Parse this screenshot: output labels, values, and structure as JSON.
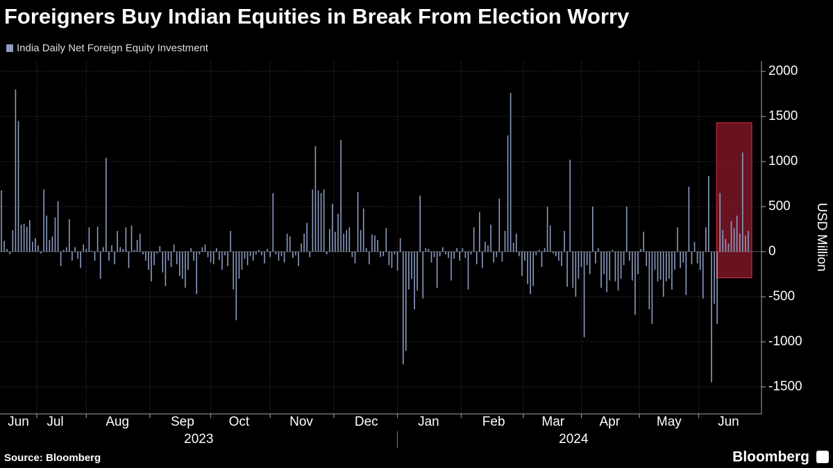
{
  "chart_data": {
    "type": "bar",
    "title": "Foreigners Buy Indian Equities in Break From Election Worry",
    "legend": "India Daily Net Foreign Equity Investment",
    "y_label": "USD Million",
    "source": "Source: Bloomberg",
    "brand": "Bloomberg",
    "color": "#8d9cc4",
    "grid": true,
    "ylim": [
      -1800,
      2115
    ],
    "yticks": [
      2000,
      1500,
      1000,
      500,
      0,
      -500,
      -1000,
      -1500
    ],
    "x_group_labels": [
      "2023",
      "2024"
    ],
    "highlight": {
      "categories": [
        254,
        264
      ],
      "yrange": [
        -290,
        1430
      ],
      "color": "#8b1a2a"
    },
    "categories": [
      null,
      null,
      null,
      null,
      null,
      null,
      "Jun",
      null,
      null,
      null,
      null,
      null,
      null,
      null,
      null,
      null,
      null,
      null,
      null,
      "Jul",
      null,
      null,
      null,
      null,
      null,
      null,
      null,
      null,
      null,
      null,
      null,
      null,
      null,
      null,
      null,
      null,
      null,
      null,
      null,
      null,
      null,
      "Aug",
      null,
      null,
      null,
      null,
      null,
      null,
      null,
      null,
      null,
      null,
      null,
      null,
      null,
      null,
      null,
      null,
      null,
      null,
      null,
      null,
      null,
      null,
      "Sep",
      null,
      null,
      null,
      null,
      null,
      null,
      null,
      null,
      null,
      null,
      null,
      null,
      null,
      null,
      null,
      null,
      null,
      null,
      null,
      "Oct",
      null,
      null,
      null,
      null,
      null,
      null,
      null,
      null,
      null,
      null,
      null,
      null,
      null,
      null,
      null,
      null,
      null,
      null,
      null,
      null,
      null,
      "Nov",
      null,
      null,
      null,
      null,
      null,
      null,
      null,
      null,
      null,
      null,
      null,
      null,
      null,
      null,
      null,
      null,
      null,
      null,
      null,
      null,
      null,
      null,
      "Dec",
      null,
      null,
      null,
      null,
      null,
      null,
      null,
      null,
      null,
      null,
      null,
      null,
      null,
      null,
      null,
      null,
      null,
      null,
      null,
      null,
      null,
      "Jan",
      null,
      null,
      null,
      null,
      null,
      null,
      null,
      null,
      null,
      null,
      null,
      null,
      null,
      null,
      null,
      null,
      null,
      null,
      null,
      null,
      null,
      null,
      "Feb",
      null,
      null,
      null,
      null,
      null,
      null,
      null,
      null,
      null,
      null,
      null,
      null,
      null,
      null,
      null,
      null,
      null,
      null,
      null,
      null,
      "Mar",
      null,
      null,
      null,
      null,
      null,
      null,
      null,
      null,
      null,
      null,
      null,
      null,
      null,
      null,
      null,
      null,
      null,
      null,
      null,
      "Apr",
      null,
      null,
      null,
      null,
      null,
      null,
      null,
      null,
      null,
      null,
      null,
      null,
      null,
      null,
      null,
      null,
      null,
      null,
      null,
      null,
      "May",
      null,
      null,
      null,
      null,
      null,
      null,
      null,
      null,
      null,
      null,
      null,
      null,
      null,
      null,
      null,
      null,
      null,
      null,
      null,
      null,
      "Jun",
      null,
      null,
      null,
      null,
      null,
      null,
      null
    ],
    "values": [
      680,
      120,
      30,
      -30,
      240,
      1800,
      1450,
      300,
      310,
      280,
      350,
      110,
      150,
      70,
      -20,
      690,
      400,
      130,
      170,
      380,
      560,
      -160,
      20,
      50,
      360,
      -100,
      50,
      -80,
      -180,
      80,
      30,
      270,
      10,
      -100,
      280,
      -300,
      50,
      1040,
      -100,
      70,
      -140,
      230,
      50,
      30,
      270,
      -180,
      290,
      20,
      130,
      200,
      -30,
      -100,
      -200,
      -330,
      -150,
      -20,
      60,
      -230,
      -380,
      -100,
      -170,
      80,
      -140,
      -270,
      -300,
      -400,
      -200,
      40,
      -100,
      -470,
      -30,
      50,
      80,
      -60,
      -120,
      -140,
      40,
      -90,
      -200,
      -40,
      -160,
      230,
      -420,
      -760,
      -300,
      -200,
      -80,
      -150,
      -50,
      -100,
      -30,
      20,
      -40,
      -130,
      30,
      -60,
      650,
      -30,
      -100,
      -50,
      -120,
      200,
      170,
      -70,
      -40,
      -160,
      90,
      200,
      320,
      -60,
      690,
      1170,
      680,
      650,
      690,
      -30,
      250,
      530,
      220,
      420,
      1240,
      200,
      240,
      270,
      -60,
      -130,
      660,
      240,
      480,
      40,
      -140,
      190,
      180,
      130,
      -60,
      -50,
      260,
      -150,
      -180,
      -30,
      -210,
      150,
      -1250,
      -1100,
      -420,
      -300,
      -640,
      -430,
      620,
      -520,
      40,
      30,
      -120,
      -60,
      -400,
      -50,
      50,
      -30,
      -70,
      -320,
      -80,
      40,
      -100,
      40,
      -70,
      -420,
      -30,
      270,
      -140,
      440,
      -180,
      110,
      70,
      300,
      -120,
      -60,
      590,
      -110,
      230,
      1290,
      1760,
      100,
      200,
      -50,
      -270,
      -100,
      -360,
      -470,
      -380,
      -40,
      20,
      -170,
      40,
      500,
      290,
      -20,
      -50,
      -100,
      -160,
      230,
      -390,
      1020,
      -400,
      -500,
      -300,
      -170,
      -950,
      -150,
      -250,
      500,
      -130,
      40,
      -400,
      -250,
      -450,
      -320,
      20,
      -330,
      -430,
      -300,
      -150,
      500,
      -100,
      -320,
      -700,
      -250,
      30,
      220,
      -160,
      -640,
      -800,
      -200,
      -330,
      -310,
      -500,
      -330,
      -300,
      -420,
      -200,
      270,
      -180,
      -120,
      -480,
      720,
      -140,
      110,
      -130,
      -200,
      -520,
      270,
      840,
      -1450,
      -580,
      -800,
      650,
      240,
      140,
      90,
      340,
      260,
      400,
      200,
      1100,
      180,
      230
    ]
  }
}
